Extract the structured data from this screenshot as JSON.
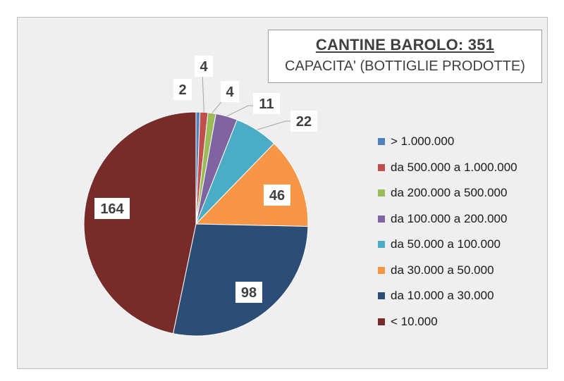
{
  "chart_data": {
    "type": "pie",
    "title": "CANTINE BAROLO: 351",
    "subtitle": "CAPACITA' (BOTTIGLIE PRODOTTE)",
    "categories": [
      "> 1.000.000",
      "da 500.000 a 1.000.000",
      "da 200.000 a 500.000",
      "da 100.000 a 200.000",
      "da 50.000 a 100.000",
      "da 30.000 a 50.000",
      "da 10.000 a 30.000",
      "< 10.000"
    ],
    "values": [
      2,
      4,
      4,
      11,
      22,
      46,
      98,
      164
    ],
    "colors": [
      "#4f81bd",
      "#c0504d",
      "#9bbb59",
      "#8064a2",
      "#4bacc6",
      "#f79646",
      "#2c4d75",
      "#772c2a"
    ],
    "legend_position": "right",
    "data_labels": true
  }
}
